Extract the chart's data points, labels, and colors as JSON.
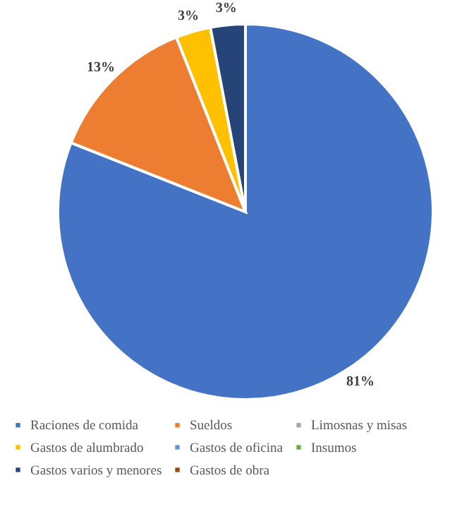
{
  "chart_data": {
    "type": "pie",
    "categories": [
      "Raciones de comida",
      "Sueldos",
      "Limosnas y misas",
      "Gastos de alumbrado",
      "Gastos de oficina",
      "Insumos",
      "Gastos varios y menores",
      "Gastos de obra"
    ],
    "values": [
      81,
      13,
      0,
      3,
      0,
      0,
      3,
      0
    ],
    "value_labels": [
      "81%",
      "13%",
      null,
      "3%",
      null,
      null,
      "3%",
      null
    ],
    "colors": [
      "#4472c4",
      "#ed7d31",
      "#a5a5a5",
      "#ffc000",
      "#5b9bd5",
      "#70ad47",
      "#264478",
      "#9e480e"
    ],
    "legend": "bottom"
  }
}
